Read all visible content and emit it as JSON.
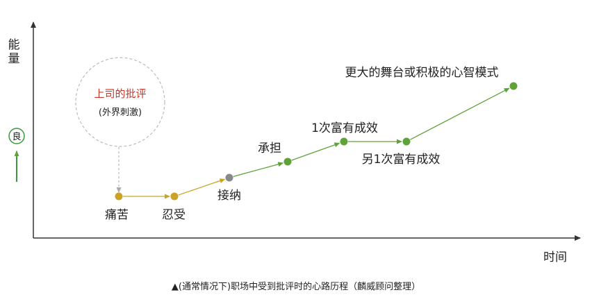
{
  "axes": {
    "y_label": "能量",
    "x_label": "时间",
    "y_badge": "良"
  },
  "bubble": {
    "title": "上司的批评",
    "subtitle": "(外界刺激)"
  },
  "colors": {
    "axis": "#333333",
    "gold": "#c9a227",
    "gray": "#888888",
    "green": "#5ea23a",
    "bubble_title": "#c0392b",
    "bubble_border": "#bbbbbb",
    "badge": "#3a9a3a"
  },
  "stages": [
    {
      "label": "痛苦",
      "color": "gold"
    },
    {
      "label": "忍受",
      "color": "gold"
    },
    {
      "label": "接纳",
      "color": "gray"
    },
    {
      "label": "承担",
      "color": "green"
    },
    {
      "label": "1次富有成效",
      "color": "green"
    },
    {
      "label": "另1次富有成效",
      "color": "green"
    },
    {
      "label": "更大的舞台或积极的心智模式",
      "color": "green"
    }
  ],
  "caption": "▲(通常情况下)职场中受到批评时的心路历程（麟威顾问整理）"
}
